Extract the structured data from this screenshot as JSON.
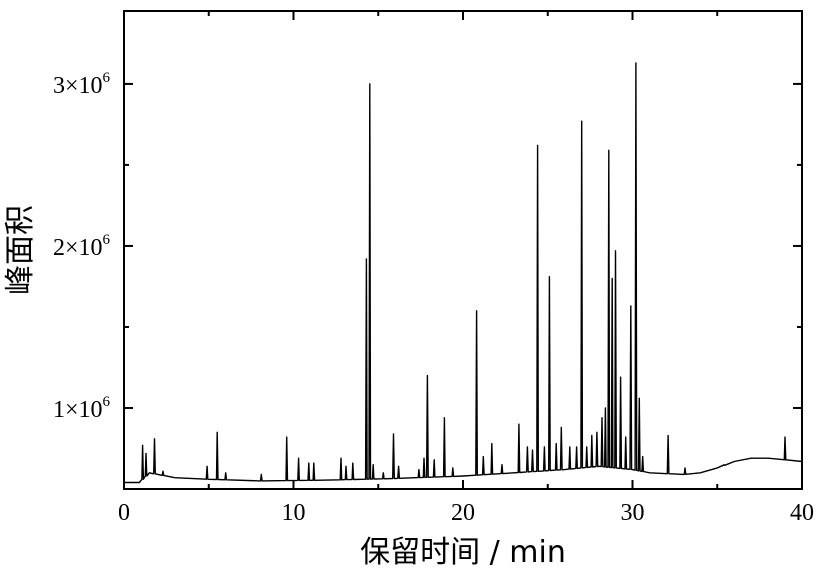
{
  "chart_data": {
    "type": "line",
    "title": "",
    "xlabel": "保留时间 / min",
    "ylabel": "峰面积",
    "xlim": [
      0,
      40
    ],
    "ylim": [
      500000,
      3450000
    ],
    "grid": false,
    "legend": "none",
    "colors": {
      "line": "#000000",
      "axis": "#000000"
    },
    "x_ticks": [
      {
        "value": 0,
        "label": "0"
      },
      {
        "value": 10,
        "label": "10"
      },
      {
        "value": 20,
        "label": "20"
      },
      {
        "value": 30,
        "label": "30"
      },
      {
        "value": 40,
        "label": "40"
      }
    ],
    "y_ticks": [
      {
        "value": 1000000,
        "mantissa": "1",
        "times": "×10",
        "exp": "6"
      },
      {
        "value": 2000000,
        "mantissa": "2",
        "times": "×10",
        "exp": "6"
      },
      {
        "value": 3000000,
        "mantissa": "3",
        "times": "×10",
        "exp": "6"
      }
    ],
    "baseline": [
      [
        0,
        540000
      ],
      [
        0.9,
        540000
      ],
      [
        1.5,
        600000
      ],
      [
        3,
        570000
      ],
      [
        5,
        560000
      ],
      [
        8,
        550000
      ],
      [
        12,
        555000
      ],
      [
        16,
        565000
      ],
      [
        20,
        580000
      ],
      [
        23,
        600000
      ],
      [
        26,
        620000
      ],
      [
        28,
        640000
      ],
      [
        30,
        620000
      ],
      [
        31,
        600000
      ],
      [
        33,
        590000
      ],
      [
        34,
        600000
      ],
      [
        35,
        630000
      ],
      [
        36,
        670000
      ],
      [
        37,
        690000
      ],
      [
        38,
        690000
      ],
      [
        39,
        680000
      ],
      [
        40,
        670000
      ]
    ],
    "peaks": [
      [
        1.1,
        770000
      ],
      [
        1.3,
        720000
      ],
      [
        1.8,
        810000
      ],
      [
        2.3,
        610000
      ],
      [
        4.9,
        640000
      ],
      [
        5.5,
        850000
      ],
      [
        6.0,
        600000
      ],
      [
        8.1,
        590000
      ],
      [
        9.6,
        820000
      ],
      [
        10.3,
        690000
      ],
      [
        10.9,
        660000
      ],
      [
        11.2,
        660000
      ],
      [
        12.8,
        690000
      ],
      [
        13.1,
        640000
      ],
      [
        13.5,
        660000
      ],
      [
        14.3,
        1920000
      ],
      [
        14.5,
        3000000
      ],
      [
        14.7,
        650000
      ],
      [
        15.3,
        600000
      ],
      [
        15.9,
        840000
      ],
      [
        16.2,
        640000
      ],
      [
        17.4,
        620000
      ],
      [
        17.7,
        690000
      ],
      [
        17.9,
        1200000
      ],
      [
        18.3,
        680000
      ],
      [
        18.9,
        940000
      ],
      [
        19.4,
        630000
      ],
      [
        20.8,
        1600000
      ],
      [
        21.2,
        700000
      ],
      [
        21.7,
        780000
      ],
      [
        22.3,
        650000
      ],
      [
        23.3,
        900000
      ],
      [
        23.8,
        760000
      ],
      [
        24.1,
        740000
      ],
      [
        24.4,
        2620000
      ],
      [
        24.8,
        760000
      ],
      [
        25.1,
        1810000
      ],
      [
        25.5,
        780000
      ],
      [
        25.8,
        880000
      ],
      [
        26.3,
        760000
      ],
      [
        26.7,
        760000
      ],
      [
        27.0,
        2770000
      ],
      [
        27.3,
        760000
      ],
      [
        27.6,
        830000
      ],
      [
        27.9,
        850000
      ],
      [
        28.2,
        940000
      ],
      [
        28.4,
        1000000
      ],
      [
        28.6,
        2590000
      ],
      [
        28.8,
        1800000
      ],
      [
        29.0,
        1970000
      ],
      [
        29.3,
        1190000
      ],
      [
        29.6,
        820000
      ],
      [
        29.9,
        1630000
      ],
      [
        30.2,
        3130000
      ],
      [
        30.4,
        1060000
      ],
      [
        30.6,
        700000
      ],
      [
        32.1,
        830000
      ],
      [
        33.1,
        630000
      ],
      [
        35.4,
        650000
      ],
      [
        39.0,
        820000
      ]
    ]
  }
}
